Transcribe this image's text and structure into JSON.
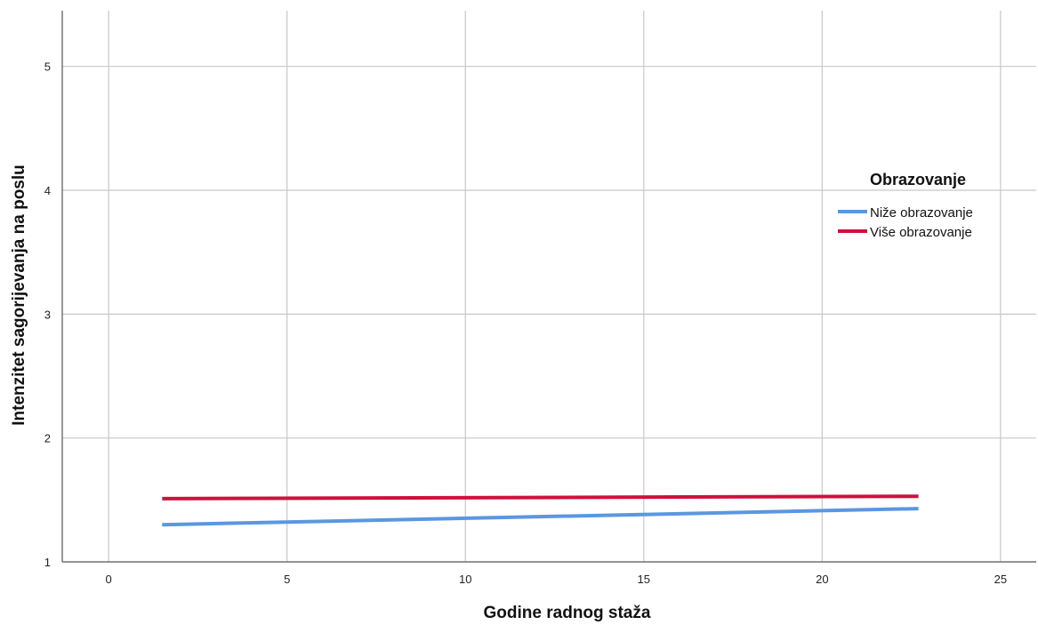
{
  "chart_data": {
    "type": "line",
    "title": "",
    "xlabel": "Godine radnog staža",
    "ylabel": "Intenzitet sagorijevanja na poslu",
    "xlim": [
      -1.3,
      26
    ],
    "ylim": [
      1,
      5.45
    ],
    "xticks": [
      0,
      5,
      10,
      15,
      20,
      25
    ],
    "yticks": [
      1,
      2,
      3,
      4,
      5
    ],
    "grid": true,
    "legend": {
      "title": "Obrazovanje",
      "placement": "right"
    },
    "series": [
      {
        "name": "Niže obrazovanje",
        "color": "#5b97e0",
        "x": [
          1.5,
          22.7
        ],
        "y": [
          1.3,
          1.43
        ]
      },
      {
        "name": "Više obrazovanje",
        "color": "#d0103c",
        "x": [
          1.5,
          22.7
        ],
        "y": [
          1.51,
          1.53
        ]
      }
    ]
  }
}
